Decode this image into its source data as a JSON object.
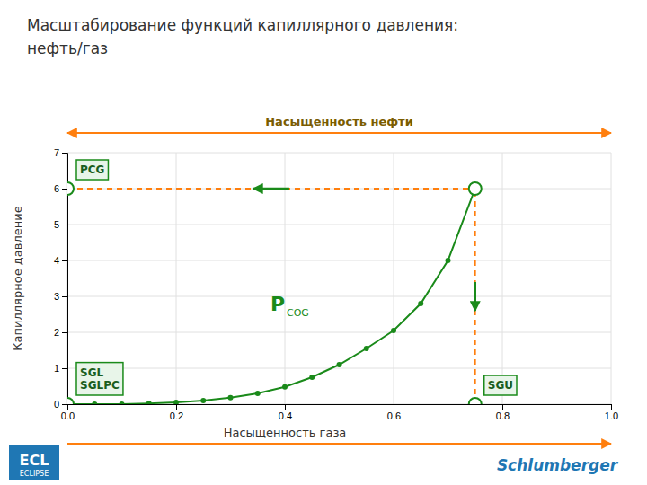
{
  "chart_data": {
    "type": "line",
    "title": "Масштабирование функций капиллярного давления:",
    "subtitle": "нефть/газ",
    "x_label": "Насыщенность газа",
    "y_label": "Капиллярное давление",
    "x": [
      0.0,
      0.05,
      0.1,
      0.15,
      0.2,
      0.25,
      0.3,
      0.35,
      0.4,
      0.45,
      0.5,
      0.55,
      0.6,
      0.65,
      0.7,
      0.75
    ],
    "values": [
      0.0,
      0.0,
      0.0,
      0.02,
      0.05,
      0.1,
      0.18,
      0.3,
      0.48,
      0.75,
      1.1,
      1.55,
      2.05,
      2.8,
      4.0,
      6.0
    ],
    "color": "#1a8a1a",
    "marker": "circle",
    "key_points": {
      "x": [
        0.0,
        0.75,
        0.0,
        0.75
      ],
      "values": [
        0.0,
        0.0,
        6.0,
        6.0
      ]
    },
    "annotations": [
      {
        "text": "SGL\nSGLPC",
        "x": 0.0,
        "y": 0.0
      },
      {
        "text": "SGU",
        "x": 0.75,
        "y": 0.0
      },
      {
        "text": "PCG",
        "x": 0.0,
        "y": 6.0
      },
      {
        "text": "Насыщенность нефти"
      },
      {
        "text": "P"
      },
      {
        "text": "COG"
      },
      {
        "text": "ECL"
      },
      {
        "text": "ECLIPSE"
      },
      {
        "text": "Schlumberger"
      }
    ],
    "xlim": [
      0,
      1
    ],
    "ylim": [
      0,
      7
    ],
    "xticks": [
      {
        "value": 0,
        "label": "0.0"
      },
      0.2,
      0.4,
      0.6,
      0.8,
      {
        "value": 1.0,
        "label": "1.0"
      }
    ],
    "yticks": [
      0,
      1,
      2,
      3,
      4,
      5,
      6,
      7
    ],
    "grid": true
  }
}
